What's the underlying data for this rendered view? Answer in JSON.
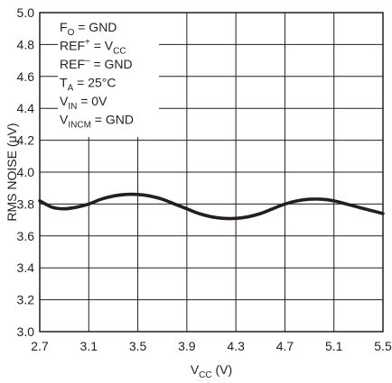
{
  "chart_data": {
    "type": "line",
    "xlabel": "V",
    "xlabel_sub": "CC",
    "xlabel_unit": " (V)",
    "ylabel": "RMS NOISE (μV)",
    "xlim": [
      2.7,
      5.5
    ],
    "ylim": [
      3.0,
      5.0
    ],
    "x_ticks": [
      "2.7",
      "3.1",
      "3.5",
      "3.9",
      "4.3",
      "4.7",
      "5.1",
      "5.5"
    ],
    "y_ticks": [
      "3.0",
      "3.2",
      "3.4",
      "3.6",
      "3.8",
      "4.0",
      "4.2",
      "4.4",
      "4.6",
      "4.8",
      "5.0"
    ],
    "grid": true,
    "conditions": [
      {
        "main": "F",
        "sub": "O",
        "rest": " = GND"
      },
      {
        "main": "REF",
        "sup": "+",
        "rest": " = V",
        "sub2": "CC"
      },
      {
        "main": "REF",
        "sup": "–",
        "rest": " = GND"
      },
      {
        "main": "T",
        "sub": "A",
        "rest": " = 25°C"
      },
      {
        "main": "V",
        "sub": "IN",
        "rest": " = 0V"
      },
      {
        "main": "V",
        "sub": "INCM",
        "rest": " = GND"
      }
    ],
    "series": [
      {
        "x": [
          2.7,
          2.8,
          2.9,
          3.0,
          3.1,
          3.2,
          3.3,
          3.4,
          3.5,
          3.6,
          3.7,
          3.8,
          3.9,
          4.0,
          4.1,
          4.2,
          4.3,
          4.4,
          4.5,
          4.6,
          4.7,
          4.8,
          4.9,
          5.0,
          5.1,
          5.2,
          5.3,
          5.4,
          5.5
        ],
        "y": [
          3.82,
          3.78,
          3.77,
          3.78,
          3.8,
          3.83,
          3.85,
          3.86,
          3.86,
          3.85,
          3.83,
          3.8,
          3.77,
          3.74,
          3.72,
          3.71,
          3.71,
          3.72,
          3.74,
          3.77,
          3.8,
          3.82,
          3.83,
          3.83,
          3.82,
          3.8,
          3.78,
          3.76,
          3.74
        ]
      }
    ]
  }
}
